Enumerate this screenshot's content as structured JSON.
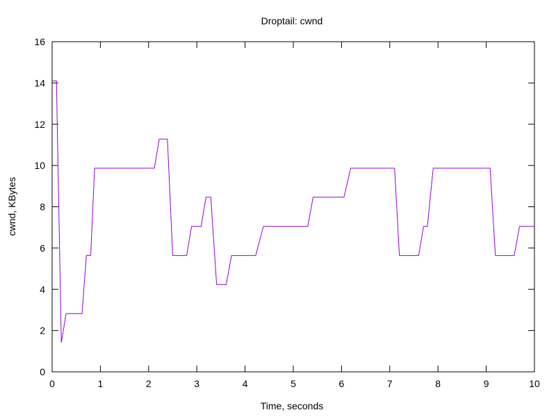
{
  "chart_data": {
    "type": "line",
    "title": "Droptail: cwnd",
    "xlabel": "Time, seconds",
    "ylabel": "cwnd, KBytes",
    "xlim": [
      0,
      10
    ],
    "ylim": [
      0,
      16
    ],
    "xticks": [
      0,
      1,
      2,
      3,
      4,
      5,
      6,
      7,
      8,
      9,
      10
    ],
    "yticks": [
      0,
      2,
      4,
      6,
      8,
      10,
      12,
      14,
      16
    ],
    "grid": false,
    "legend": "none",
    "series": [
      {
        "color": "#9400d3",
        "x": [
          0.0,
          0.09,
          0.19,
          0.29,
          0.62,
          0.71,
          0.8,
          0.88,
          2.12,
          2.22,
          2.39,
          2.5,
          2.79,
          2.89,
          3.09,
          3.19,
          3.29,
          3.41,
          3.61,
          3.72,
          4.22,
          4.38,
          5.3,
          5.41,
          6.05,
          6.19,
          7.1,
          7.2,
          7.6,
          7.7,
          7.78,
          7.9,
          9.08,
          9.19,
          9.58,
          9.69,
          10.0
        ],
        "y": [
          14.1,
          14.1,
          1.41,
          2.82,
          2.82,
          5.64,
          5.64,
          9.87,
          9.87,
          11.28,
          11.28,
          5.64,
          5.64,
          7.05,
          7.05,
          8.46,
          8.46,
          4.23,
          4.23,
          5.64,
          5.64,
          7.05,
          7.05,
          8.46,
          8.46,
          9.87,
          9.87,
          5.64,
          5.64,
          7.05,
          7.05,
          9.87,
          9.87,
          5.64,
          5.64,
          7.05,
          7.05
        ]
      }
    ]
  }
}
